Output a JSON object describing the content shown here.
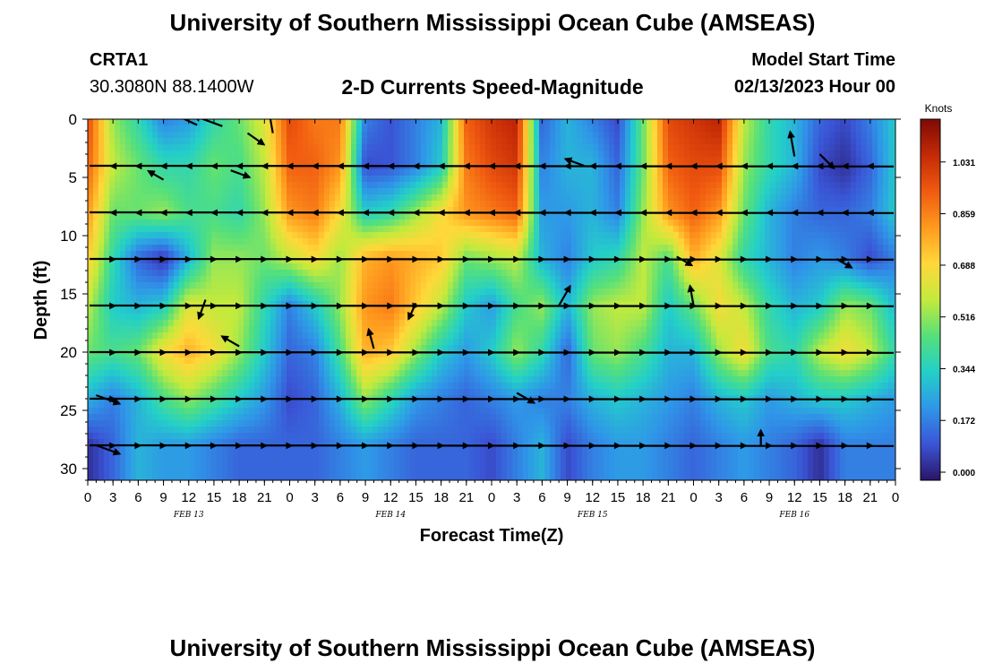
{
  "header": {
    "title": "University of Southern Mississippi Ocean Cube (AMSEAS)",
    "station": "CRTA1",
    "coords": "30.3080N  88.1400W",
    "subtitle": "2-D Currents Speed-Magnitude",
    "model_start_label": "Model Start Time",
    "model_start_date": "02/13/2023 Hour 00",
    "footer_title": "University of Southern Mississippi Ocean Cube (AMSEAS)"
  },
  "chart_data": {
    "type": "heatmap",
    "title": "2-D Currents Speed-Magnitude",
    "xlabel": "Forecast Time(Z)",
    "ylabel": "Depth (ft)",
    "x_ticks": [
      "0",
      "3",
      "6",
      "9",
      "12",
      "15",
      "18",
      "21",
      "0",
      "3",
      "6",
      "9",
      "12",
      "15",
      "18",
      "21",
      "0",
      "3",
      "6",
      "9",
      "12",
      "15",
      "18",
      "21",
      "0",
      "3",
      "6",
      "9",
      "12",
      "15",
      "18",
      "21",
      "0"
    ],
    "date_labels": [
      {
        "label": "FEB 13",
        "hour": 12
      },
      {
        "label": "FEB 14",
        "hour": 36
      },
      {
        "label": "FEB 15",
        "hour": 60
      },
      {
        "label": "FEB 16",
        "hour": 84
      }
    ],
    "x_range_hours": [
      0,
      96
    ],
    "y_ticks": [
      0,
      5,
      10,
      15,
      20,
      25,
      30
    ],
    "ylim": [
      0,
      31
    ],
    "colorbar": {
      "label": "Knots",
      "ticks": [
        "1.031",
        "0.859",
        "0.688",
        "0.516",
        "0.344",
        "0.172",
        "0.000"
      ],
      "range": [
        0,
        1.2
      ],
      "colors": [
        "#2b1468",
        "#3a55d6",
        "#2f96e8",
        "#23d0c8",
        "#56e07a",
        "#c4ea3c",
        "#ffd83a",
        "#ff9a1e",
        "#f05a10",
        "#c42a06",
        "#7e0a05"
      ]
    },
    "depth_levels_ft": [
      0,
      4,
      8,
      12,
      16,
      20,
      24,
      28
    ],
    "speed_knots": [
      [
        1.0,
        0.55,
        0.4,
        0.2,
        0.25,
        0.4,
        0.5,
        0.65,
        1.0,
        0.9,
        0.9,
        0.2,
        0.12,
        0.2,
        0.3,
        0.95,
        1.05,
        1.1,
        0.15,
        0.3,
        0.2,
        0.1,
        0.5,
        1.0,
        1.05,
        1.1,
        0.6,
        0.4,
        0.3,
        0.15,
        0.1,
        0.2,
        0.35
      ],
      [
        0.95,
        0.6,
        0.5,
        0.4,
        0.4,
        0.5,
        0.45,
        0.6,
        0.95,
        0.95,
        0.85,
        0.1,
        0.12,
        0.2,
        0.35,
        0.9,
        1.0,
        1.05,
        0.2,
        0.3,
        0.3,
        0.15,
        0.5,
        0.95,
        1.0,
        1.0,
        0.55,
        0.4,
        0.3,
        0.1,
        0.05,
        0.15,
        0.35
      ],
      [
        0.85,
        0.5,
        0.5,
        0.55,
        0.45,
        0.45,
        0.4,
        0.55,
        0.85,
        0.9,
        0.7,
        0.35,
        0.4,
        0.55,
        0.7,
        0.85,
        0.9,
        0.95,
        0.25,
        0.25,
        0.3,
        0.2,
        0.55,
        0.85,
        0.95,
        0.85,
        0.5,
        0.3,
        0.2,
        0.15,
        0.15,
        0.2,
        0.35
      ],
      [
        0.75,
        0.4,
        0.15,
        0.05,
        0.3,
        0.55,
        0.55,
        0.5,
        0.6,
        0.7,
        0.55,
        0.8,
        0.85,
        0.8,
        0.75,
        0.5,
        0.55,
        0.6,
        0.3,
        0.2,
        0.35,
        0.4,
        0.6,
        0.45,
        0.8,
        0.65,
        0.4,
        0.3,
        0.2,
        0.25,
        0.2,
        0.1,
        0.2
      ],
      [
        0.6,
        0.35,
        0.3,
        0.35,
        0.65,
        0.6,
        0.6,
        0.4,
        0.2,
        0.35,
        0.55,
        0.85,
        0.9,
        0.75,
        0.6,
        0.35,
        0.25,
        0.45,
        0.55,
        0.3,
        0.55,
        0.6,
        0.6,
        0.35,
        0.5,
        0.7,
        0.6,
        0.4,
        0.3,
        0.35,
        0.55,
        0.5,
        0.3
      ],
      [
        0.5,
        0.45,
        0.5,
        0.7,
        0.8,
        0.7,
        0.55,
        0.35,
        0.15,
        0.2,
        0.45,
        0.8,
        0.75,
        0.55,
        0.35,
        0.25,
        0.35,
        0.55,
        0.4,
        0.15,
        0.5,
        0.55,
        0.45,
        0.3,
        0.3,
        0.55,
        0.7,
        0.45,
        0.4,
        0.6,
        0.7,
        0.6,
        0.4
      ],
      [
        0.3,
        0.2,
        0.3,
        0.45,
        0.55,
        0.45,
        0.35,
        0.25,
        0.1,
        0.15,
        0.3,
        0.55,
        0.4,
        0.25,
        0.2,
        0.15,
        0.2,
        0.25,
        0.2,
        0.2,
        0.3,
        0.35,
        0.3,
        0.25,
        0.2,
        0.3,
        0.35,
        0.25,
        0.3,
        0.35,
        0.35,
        0.3,
        0.25
      ],
      [
        0.05,
        0.15,
        0.3,
        0.25,
        0.25,
        0.2,
        0.15,
        0.15,
        0.15,
        0.15,
        0.2,
        0.25,
        0.2,
        0.15,
        0.15,
        0.15,
        0.1,
        0.2,
        0.3,
        0.1,
        0.2,
        0.25,
        0.25,
        0.2,
        0.15,
        0.2,
        0.25,
        0.2,
        0.15,
        0.05,
        0.2,
        0.2,
        0.2
      ]
    ],
    "vectors": [
      {
        "hour": 13,
        "depth": 0.5,
        "angle": 205,
        "len": 1.2
      },
      {
        "hour": 16,
        "depth": 0.6,
        "angle": 200,
        "len": 1.2
      },
      {
        "hour": 19,
        "depth": 1.2,
        "angle": 35,
        "len": 0.8
      },
      {
        "hour": 9,
        "depth": 5.2,
        "angle": 210,
        "len": 0.7
      },
      {
        "hour": 17,
        "depth": 4.4,
        "angle": 20,
        "len": 0.8
      },
      {
        "hour": 18,
        "depth": 19.5,
        "angle": 210,
        "len": 0.8
      },
      {
        "hour": 14,
        "depth": 15.5,
        "angle": 110,
        "len": 0.8
      },
      {
        "hour": 22,
        "depth": 1.2,
        "angle": 260,
        "len": 1.0
      },
      {
        "hour": 84,
        "depth": 3.2,
        "angle": 260,
        "len": 1.0
      },
      {
        "hour": 87,
        "depth": 3.0,
        "angle": 45,
        "len": 0.8
      },
      {
        "hour": 1,
        "depth": 23.7,
        "angle": 20,
        "len": 1.0
      },
      {
        "hour": 1,
        "depth": 28.0,
        "angle": 20,
        "len": 1.0
      },
      {
        "hour": 80,
        "depth": 28.0,
        "angle": 270,
        "len": 0.6
      },
      {
        "hour": 34,
        "depth": 19.7,
        "angle": 255,
        "len": 0.8
      },
      {
        "hour": 51,
        "depth": 23.5,
        "angle": 30,
        "len": 0.8
      },
      {
        "hour": 56,
        "depth": 16.0,
        "angle": 300,
        "len": 0.9
      },
      {
        "hour": 39,
        "depth": 15.8,
        "angle": 115,
        "len": 0.7
      },
      {
        "hour": 72,
        "depth": 16.0,
        "angle": 260,
        "len": 0.8
      },
      {
        "hour": 70,
        "depth": 11.8,
        "angle": 30,
        "len": 0.7
      },
      {
        "hour": 89,
        "depth": 12.0,
        "angle": 30,
        "len": 0.7
      },
      {
        "hour": 59,
        "depth": 4.0,
        "angle": 200,
        "len": 0.8
      }
    ],
    "flow_rows": [
      {
        "depth": 4,
        "dir": "left"
      },
      {
        "depth": 8,
        "dir": "left"
      },
      {
        "depth": 12,
        "dir": "right"
      },
      {
        "depth": 16,
        "dir": "right"
      },
      {
        "depth": 20,
        "dir": "right"
      },
      {
        "depth": 24,
        "dir": "right"
      },
      {
        "depth": 28,
        "dir": "right"
      }
    ]
  }
}
